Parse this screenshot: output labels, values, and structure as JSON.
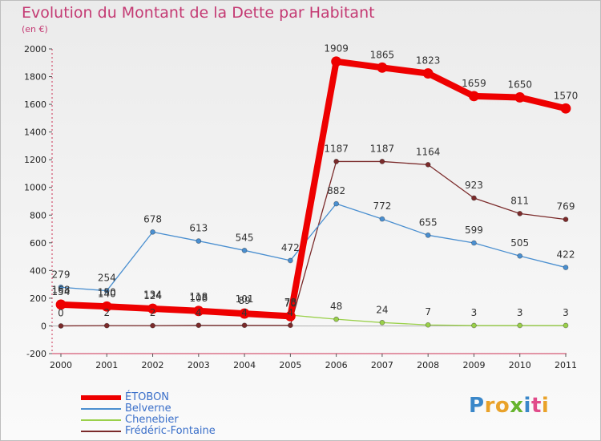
{
  "header": {
    "title": "Evolution du Montant de la Dette par Habitant",
    "subtitle": "(en €)"
  },
  "logo": {
    "text": "Proxiti",
    "colors": [
      "#3a87c9",
      "#e9a22a",
      "#e9a22a",
      "#66b42e",
      "#3a87c9",
      "#e14b8a",
      "#e9a22a"
    ]
  },
  "chart_data": {
    "type": "line",
    "title": "Evolution du Montant de la Dette par Habitant",
    "subtitle": "(en €)",
    "x": [
      "2000",
      "2001",
      "2002",
      "2003",
      "2004",
      "2005",
      "2006",
      "2007",
      "2008",
      "2009",
      "2010",
      "2011"
    ],
    "ylim": [
      -200,
      2000
    ],
    "yticks": [
      -200,
      0,
      200,
      400,
      600,
      800,
      1000,
      1200,
      1400,
      1600,
      1800,
      2000
    ],
    "grid": false,
    "legend_position": "bottom-left",
    "series": [
      {
        "name": "ÉTOBON",
        "color": "#ee0000",
        "values": [
          154,
          140,
          124,
          108,
          89,
          70,
          1909,
          1865,
          1823,
          1659,
          1650,
          1570
        ],
        "labels": [
          "154",
          "140",
          "124",
          "108",
          "89",
          "70",
          "1909",
          "1865",
          "1823",
          "1659",
          "1650",
          "1570"
        ]
      },
      {
        "name": "Belverne",
        "color": "#4a8fd0",
        "values": [
          279,
          254,
          678,
          613,
          545,
          472,
          882,
          772,
          655,
          599,
          505,
          422
        ],
        "labels": [
          "279",
          "254",
          "678",
          "613",
          "545",
          "472",
          "882",
          "772",
          "655",
          "599",
          "505",
          "422"
        ]
      },
      {
        "name": "Chenebier",
        "color": "#9ad04a",
        "values": [
          168,
          150,
          134,
          118,
          101,
          78,
          48,
          24,
          7,
          3,
          3,
          3
        ],
        "labels": [
          "168",
          "150",
          "134",
          "118",
          "101",
          "78",
          "48",
          "24",
          "7",
          "3",
          "3",
          "3"
        ]
      },
      {
        "name": "Frédéric-Fontaine",
        "color": "#7b2b2b",
        "values": [
          0,
          2,
          2,
          4,
          4,
          4,
          1187,
          1187,
          1164,
          923,
          811,
          769
        ],
        "labels": [
          "0",
          "2",
          "2",
          "4",
          "4",
          "4",
          "1187",
          "1187",
          "1164",
          "923",
          "811",
          "769"
        ]
      }
    ]
  }
}
